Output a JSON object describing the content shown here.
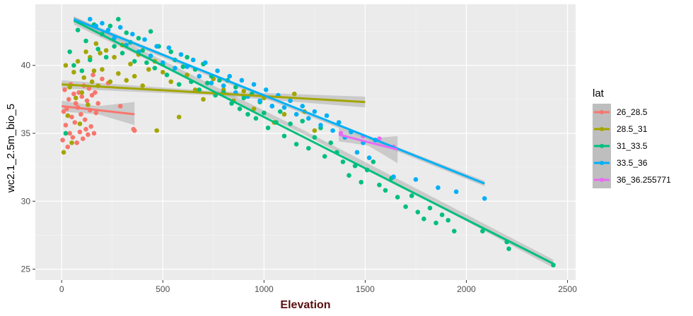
{
  "chart_data": {
    "type": "scatter",
    "title": "",
    "xlabel": "Elevation",
    "ylabel": "wc2.1_2.5m_bio_5",
    "xlim": [
      -130,
      2540
    ],
    "ylim": [
      24.2,
      44.5
    ],
    "x_ticks": [
      0,
      500,
      1000,
      1500,
      2000,
      2500
    ],
    "y_ticks": [
      25,
      30,
      35,
      40
    ],
    "legend_title": "lat",
    "legend_position": "right",
    "series": [
      {
        "name": "26_28.5",
        "color": "#F8766D",
        "fit": [
          [
            0,
            37.0
          ],
          [
            360,
            36.4
          ]
        ],
        "ci": [
          [
            0,
            37.4,
            36.6
          ],
          [
            180,
            37.0,
            36.4
          ],
          [
            360,
            37.3,
            35.6
          ]
        ],
        "points": [
          [
            5,
            34.5
          ],
          [
            10,
            36.6
          ],
          [
            15,
            38.2
          ],
          [
            20,
            35.6
          ],
          [
            25,
            36.8
          ],
          [
            30,
            34.0
          ],
          [
            35,
            37.5
          ],
          [
            40,
            35.0
          ],
          [
            45,
            38.6
          ],
          [
            50,
            36.2
          ],
          [
            55,
            34.7
          ],
          [
            60,
            37.9
          ],
          [
            65,
            35.8
          ],
          [
            70,
            37.2
          ],
          [
            75,
            34.3
          ],
          [
            80,
            36.9
          ],
          [
            85,
            38.0
          ],
          [
            90,
            35.1
          ],
          [
            95,
            36.4
          ],
          [
            100,
            37.7
          ],
          [
            105,
            34.6
          ],
          [
            110,
            38.5
          ],
          [
            115,
            36.0
          ],
          [
            120,
            35.3
          ],
          [
            125,
            37.4
          ],
          [
            130,
            34.9
          ],
          [
            135,
            38.3
          ],
          [
            140,
            36.7
          ],
          [
            145,
            35.5
          ],
          [
            150,
            37.8
          ],
          [
            155,
            39.3
          ],
          [
            160,
            35.0
          ],
          [
            165,
            38.0
          ],
          [
            170,
            36.5
          ],
          [
            180,
            37.2
          ],
          [
            200,
            39.0
          ],
          [
            230,
            38.7
          ],
          [
            290,
            37.0
          ],
          [
            355,
            35.3
          ],
          [
            360,
            35.2
          ]
        ]
      },
      {
        "name": "28.5_31",
        "color": "#A3A500",
        "fit": [
          [
            0,
            38.6
          ],
          [
            1500,
            37.3
          ]
        ],
        "ci": [
          [
            0,
            38.9,
            38.3
          ],
          [
            750,
            38.1,
            37.8
          ],
          [
            1500,
            37.7,
            36.9
          ]
        ],
        "points": [
          [
            10,
            33.6
          ],
          [
            20,
            40.0
          ],
          [
            30,
            36.3
          ],
          [
            40,
            38.4
          ],
          [
            50,
            34.3
          ],
          [
            60,
            39.5
          ],
          [
            70,
            37.6
          ],
          [
            80,
            40.3
          ],
          [
            90,
            35.7
          ],
          [
            100,
            38.0
          ],
          [
            110,
            39.1
          ],
          [
            120,
            41.0
          ],
          [
            130,
            37.1
          ],
          [
            140,
            40.6
          ],
          [
            150,
            38.8
          ],
          [
            160,
            39.6
          ],
          [
            170,
            41.6
          ],
          [
            180,
            38.5
          ],
          [
            190,
            40.9
          ],
          [
            200,
            39.7
          ],
          [
            220,
            41.1
          ],
          [
            240,
            38.8
          ],
          [
            260,
            40.6
          ],
          [
            280,
            39.4
          ],
          [
            300,
            41.5
          ],
          [
            320,
            38.9
          ],
          [
            340,
            40.1
          ],
          [
            360,
            39.2
          ],
          [
            380,
            40.8
          ],
          [
            400,
            38.5
          ],
          [
            430,
            39.7
          ],
          [
            460,
            40.3
          ],
          [
            470,
            35.2
          ],
          [
            500,
            39.5
          ],
          [
            540,
            38.8
          ],
          [
            580,
            36.2
          ],
          [
            620,
            39.3
          ],
          [
            660,
            38.2
          ],
          [
            700,
            37.5
          ],
          [
            750,
            39.0
          ],
          [
            800,
            38.2
          ],
          [
            850,
            37.4
          ],
          [
            900,
            38.1
          ],
          [
            950,
            36.8
          ],
          [
            1000,
            37.6
          ],
          [
            1050,
            35.8
          ],
          [
            1100,
            36.4
          ],
          [
            1150,
            37.9
          ],
          [
            1200,
            36.6
          ],
          [
            1250,
            35.2
          ]
        ]
      },
      {
        "name": "31_33.5",
        "color": "#00BF7D",
        "fit": [
          [
            60,
            43.3
          ],
          [
            2430,
            25.4
          ]
        ],
        "ci": [
          [
            60,
            43.6,
            43.0
          ],
          [
            1200,
            35.2,
            34.9
          ],
          [
            2430,
            25.7,
            25.1
          ]
        ],
        "points": [
          [
            20,
            35.0
          ],
          [
            40,
            41.0
          ],
          [
            60,
            40.0
          ],
          [
            80,
            42.6
          ],
          [
            100,
            39.6
          ],
          [
            120,
            41.8
          ],
          [
            140,
            40.4
          ],
          [
            160,
            43.0
          ],
          [
            180,
            41.2
          ],
          [
            200,
            42.3
          ],
          [
            220,
            40.6
          ],
          [
            240,
            42.9
          ],
          [
            260,
            41.4
          ],
          [
            280,
            43.4
          ],
          [
            300,
            40.9
          ],
          [
            320,
            42.4
          ],
          [
            340,
            41.7
          ],
          [
            360,
            40.3
          ],
          [
            380,
            42.0
          ],
          [
            400,
            41.1
          ],
          [
            420,
            40.2
          ],
          [
            440,
            42.5
          ],
          [
            460,
            39.8
          ],
          [
            480,
            41.4
          ],
          [
            500,
            40.1
          ],
          [
            520,
            39.3
          ],
          [
            540,
            41.0
          ],
          [
            560,
            40.4
          ],
          [
            580,
            38.6
          ],
          [
            600,
            39.9
          ],
          [
            620,
            40.6
          ],
          [
            640,
            38.8
          ],
          [
            660,
            39.7
          ],
          [
            680,
            38.2
          ],
          [
            700,
            40.1
          ],
          [
            720,
            38.7
          ],
          [
            740,
            39.2
          ],
          [
            760,
            37.8
          ],
          [
            780,
            38.9
          ],
          [
            800,
            38.0
          ],
          [
            820,
            38.9
          ],
          [
            840,
            37.2
          ],
          [
            860,
            38.4
          ],
          [
            880,
            36.8
          ],
          [
            900,
            37.6
          ],
          [
            920,
            36.4
          ],
          [
            940,
            37.9
          ],
          [
            960,
            36.1
          ],
          [
            980,
            37.3
          ],
          [
            1000,
            36.5
          ],
          [
            1020,
            35.4
          ],
          [
            1040,
            37.0
          ],
          [
            1060,
            35.8
          ],
          [
            1080,
            36.6
          ],
          [
            1100,
            34.8
          ],
          [
            1130,
            35.7
          ],
          [
            1160,
            34.2
          ],
          [
            1190,
            35.9
          ],
          [
            1220,
            33.9
          ],
          [
            1250,
            34.7
          ],
          [
            1280,
            35.4
          ],
          [
            1300,
            33.3
          ],
          [
            1330,
            34.3
          ],
          [
            1360,
            33.6
          ],
          [
            1390,
            32.9
          ],
          [
            1420,
            31.9
          ],
          [
            1450,
            32.6
          ],
          [
            1480,
            31.4
          ],
          [
            1510,
            32.3
          ],
          [
            1540,
            32.9
          ],
          [
            1570,
            31.2
          ],
          [
            1600,
            30.8
          ],
          [
            1630,
            31.7
          ],
          [
            1660,
            30.3
          ],
          [
            1700,
            29.6
          ],
          [
            1730,
            30.4
          ],
          [
            1760,
            29.2
          ],
          [
            1790,
            28.7
          ],
          [
            1820,
            29.5
          ],
          [
            1850,
            28.4
          ],
          [
            1880,
            29.0
          ],
          [
            1910,
            28.6
          ],
          [
            1940,
            27.8
          ],
          [
            2080,
            27.8
          ],
          [
            2200,
            27.0
          ],
          [
            2210,
            26.5
          ],
          [
            2430,
            25.3
          ]
        ]
      },
      {
        "name": "33.5_36",
        "color": "#00B0F6",
        "fit": [
          [
            60,
            43.4
          ],
          [
            2090,
            31.3
          ]
        ],
        "ci": [
          [
            60,
            43.6,
            43.2
          ],
          [
            1000,
            37.8,
            37.6
          ],
          [
            2090,
            31.5,
            31.1
          ]
        ],
        "points": [
          [
            140,
            43.4
          ],
          [
            170,
            42.9
          ],
          [
            200,
            43.1
          ],
          [
            230,
            42.6
          ],
          [
            260,
            42.0
          ],
          [
            290,
            42.8
          ],
          [
            320,
            41.5
          ],
          [
            350,
            42.3
          ],
          [
            380,
            41.0
          ],
          [
            410,
            41.9
          ],
          [
            440,
            40.7
          ],
          [
            470,
            41.4
          ],
          [
            500,
            40.2
          ],
          [
            530,
            41.3
          ],
          [
            560,
            39.8
          ],
          [
            590,
            40.8
          ],
          [
            620,
            39.9
          ],
          [
            650,
            40.4
          ],
          [
            680,
            39.2
          ],
          [
            710,
            40.2
          ],
          [
            740,
            38.7
          ],
          [
            770,
            39.6
          ],
          [
            800,
            38.5
          ],
          [
            830,
            39.2
          ],
          [
            860,
            38.0
          ],
          [
            890,
            38.9
          ],
          [
            920,
            37.7
          ],
          [
            950,
            38.6
          ],
          [
            980,
            37.4
          ],
          [
            1010,
            38.2
          ],
          [
            1040,
            37.0
          ],
          [
            1070,
            37.8
          ],
          [
            1100,
            36.9
          ],
          [
            1130,
            37.4
          ],
          [
            1160,
            36.4
          ],
          [
            1190,
            37.0
          ],
          [
            1220,
            36.1
          ],
          [
            1250,
            36.6
          ],
          [
            1280,
            35.6
          ],
          [
            1310,
            36.3
          ],
          [
            1340,
            35.2
          ],
          [
            1370,
            35.8
          ],
          [
            1400,
            34.7
          ],
          [
            1430,
            35.1
          ],
          [
            1460,
            33.6
          ],
          [
            1490,
            34.3
          ],
          [
            1520,
            33.2
          ],
          [
            1550,
            34.5
          ],
          [
            1640,
            31.8
          ],
          [
            1750,
            31.6
          ],
          [
            1860,
            31.0
          ],
          [
            1950,
            30.7
          ],
          [
            2090,
            30.2
          ]
        ]
      },
      {
        "name": "36_36.255771",
        "color": "#E76BF3",
        "fit": [
          [
            1370,
            34.9
          ],
          [
            1660,
            33.8
          ]
        ],
        "ci": [
          [
            1370,
            35.4,
            34.4
          ],
          [
            1515,
            34.6,
            34.1
          ],
          [
            1660,
            34.8,
            32.8
          ]
        ],
        "points": [
          [
            1380,
            35.0
          ],
          [
            1490,
            34.8
          ],
          [
            1570,
            34.6
          ],
          [
            1640,
            34.0
          ]
        ]
      }
    ]
  }
}
